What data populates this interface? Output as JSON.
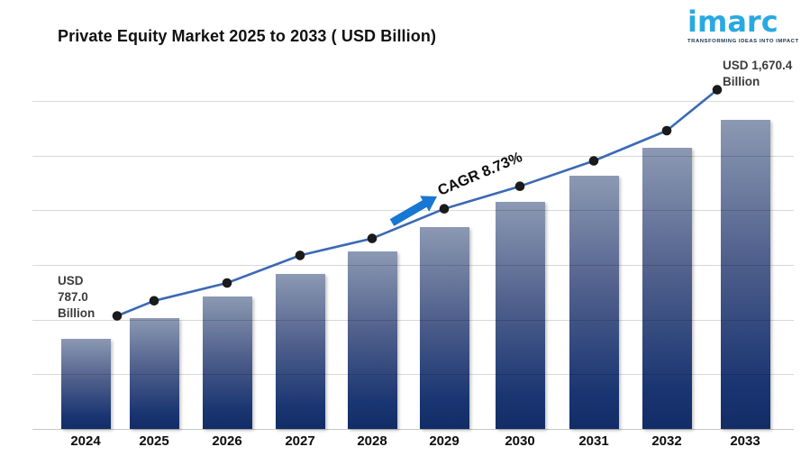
{
  "title": "Private Equity Market 2025 to 2033 ( USD Billion)",
  "logo": {
    "name": "imarc",
    "tagline": "TRANSFORMING IDEAS INTO IMPACT"
  },
  "chart_data": {
    "type": "bar",
    "overlay": "line",
    "title": "Private Equity Market 2025 to 2033 ( USD Billion)",
    "xlabel": "",
    "ylabel": "USD Billion",
    "y_axis_visible": false,
    "grid": true,
    "gridline_count": 7,
    "categories": [
      "2024",
      "2025",
      "2026",
      "2027",
      "2028",
      "2029",
      "2030",
      "2031",
      "2032",
      "2033"
    ],
    "values": [
      787.0,
      855.7,
      930.5,
      1011.7,
      1100.0,
      1196.1,
      1300.6,
      1414.2,
      1537.7,
      1670.4
    ],
    "values_note": "Only 2024 (787.0) and 2033 (1670.4) are labeled on the chart; intermediate values estimated from CAGR 8.73%",
    "cagr_percent": 8.73,
    "annotations": {
      "start": {
        "lines": [
          "USD",
          "787.0",
          "Billion"
        ]
      },
      "end": {
        "lines": [
          "USD 1,670.4",
          "Billion"
        ]
      },
      "cagr_label": "CAGR 8.73%"
    },
    "colors": {
      "bar_top": "#8C99B3",
      "bar_bottom": "#122C66",
      "line": "#3B69B5",
      "marker": "#1a1a1a",
      "arrow": "#1877D2",
      "grid": "#D9D9D9",
      "logo_blue": "#29A9E1",
      "tagline_dark": "#15304E",
      "annotation_text": "#3C3C3C"
    }
  }
}
